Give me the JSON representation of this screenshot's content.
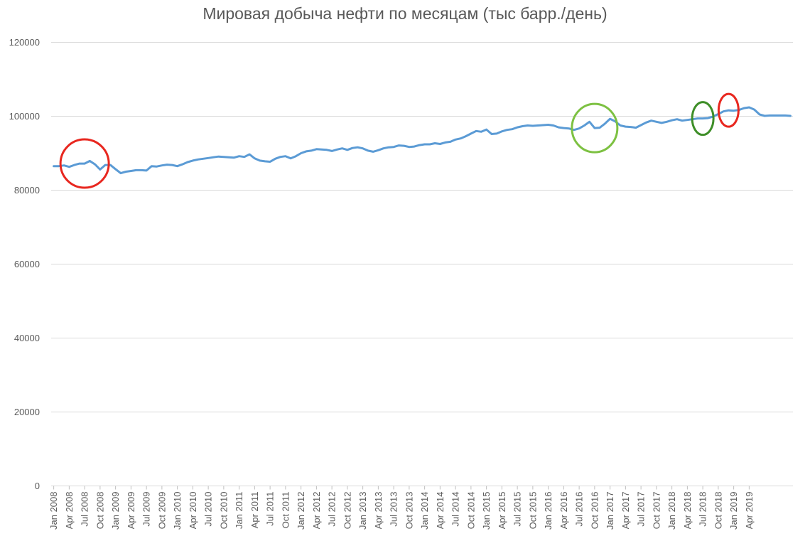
{
  "chart_data": {
    "type": "line",
    "title": "Мировая добыча нефти по месяцам (тыс барр./день)",
    "xlabel": "",
    "ylabel": "",
    "ylim": [
      0,
      120000
    ],
    "yticks": [
      0,
      20000,
      40000,
      60000,
      80000,
      100000,
      120000
    ],
    "grid": true,
    "legend": "none",
    "x_tick_labels": [
      "Jan 2008",
      "Apr 2008",
      "Jul 2008",
      "Oct 2008",
      "Jan 2009",
      "Apr 2009",
      "Jul 2009",
      "Oct 2009",
      "Jan 2010",
      "Apr 2010",
      "Jul 2010",
      "Oct 2010",
      "Jan 2011",
      "Apr 2011",
      "Jul 2011",
      "Oct 2011",
      "Jan 2012",
      "Apr 2012",
      "Jul 2012",
      "Oct 2012",
      "Jan 2013",
      "Apr 2013",
      "Jul 2013",
      "Oct 2013",
      "Jan 2014",
      "Apr 2014",
      "Jul 2014",
      "Oct 2014",
      "Jan 2015",
      "Apr 2015",
      "Jul 2015",
      "Oct 2015",
      "Jan 2016",
      "Apr 2016",
      "Jul 2016",
      "Oct 2016",
      "Jan 2017",
      "Apr 2017",
      "Jul 2017",
      "Oct 2017",
      "Jan 2018",
      "Apr 2018",
      "Jul 2018",
      "Oct 2018",
      "Jan 2019",
      "Apr 2019"
    ],
    "series": [
      {
        "color": "#5b9bd5",
        "start": "Jan 2008",
        "values": [
          86500,
          86500,
          86700,
          86300,
          86800,
          87200,
          87200,
          87900,
          87000,
          85600,
          86800,
          86800,
          85700,
          84600,
          85000,
          85200,
          85400,
          85400,
          85300,
          86500,
          86400,
          86700,
          86900,
          86800,
          86500,
          87000,
          87600,
          88000,
          88300,
          88500,
          88700,
          88900,
          89100,
          89000,
          88900,
          88800,
          89200,
          89000,
          89700,
          88600,
          88000,
          87800,
          87700,
          88500,
          89000,
          89200,
          88600,
          89200,
          90000,
          90500,
          90700,
          91100,
          91000,
          90900,
          90600,
          91000,
          91300,
          90900,
          91400,
          91600,
          91300,
          90700,
          90400,
          90800,
          91300,
          91600,
          91700,
          92100,
          92000,
          91700,
          91800,
          92200,
          92400,
          92400,
          92700,
          92500,
          92900,
          93100,
          93700,
          94000,
          94600,
          95300,
          96000,
          95800,
          96400,
          95200,
          95300,
          95900,
          96300,
          96500,
          97000,
          97300,
          97500,
          97400,
          97500,
          97600,
          97700,
          97500,
          97000,
          96800,
          96700,
          96300,
          96700,
          97500,
          98500,
          96800,
          96900,
          98000,
          99300,
          98600,
          97500,
          97200,
          97100,
          96900,
          97600,
          98300,
          98800,
          98500,
          98200,
          98500,
          98900,
          99200,
          98800,
          99000,
          99200,
          99400,
          99400,
          99500,
          99900,
          100600,
          101300,
          101600,
          101500,
          101700,
          102200,
          102400,
          101800,
          100500,
          100100,
          100200,
          100200,
          100200,
          100200,
          100100
        ]
      }
    ],
    "annotations": [
      {
        "shape": "circle",
        "color": "#e8271f",
        "at": "Jul 2008"
      },
      {
        "shape": "circle",
        "color": "#7dc142",
        "at": "Oct 2016"
      },
      {
        "shape": "circle",
        "color": "#3e8e28",
        "at": "Jul 2018"
      },
      {
        "shape": "circle",
        "color": "#e8271f",
        "at": "Dec 2018"
      }
    ]
  }
}
